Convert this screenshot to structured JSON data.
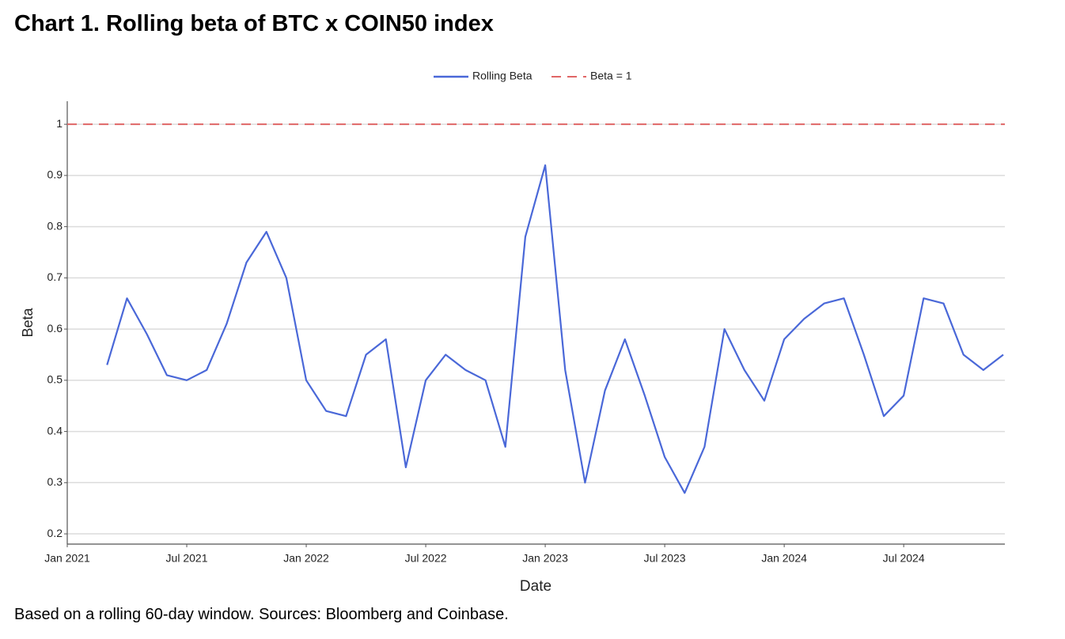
{
  "chart_data": {
    "type": "line",
    "title": "Chart 1. Rolling beta of BTC x COIN50 index",
    "footnote": "Based on a rolling 60-day window. Sources: Bloomberg and Coinbase.",
    "x_label": "Date",
    "y_label": "Beta",
    "x": [
      "2021-03",
      "2021-04",
      "2021-05",
      "2021-06",
      "2021-07",
      "2021-08",
      "2021-09",
      "2021-10",
      "2021-11",
      "2021-12",
      "2022-01",
      "2022-02",
      "2022-03",
      "2022-04",
      "2022-05",
      "2022-06",
      "2022-07",
      "2022-08",
      "2022-09",
      "2022-10",
      "2022-11",
      "2022-12",
      "2023-01",
      "2023-02",
      "2023-03",
      "2023-04",
      "2023-05",
      "2023-06",
      "2023-07",
      "2023-08",
      "2023-09",
      "2023-10",
      "2023-11",
      "2023-12",
      "2024-01",
      "2024-02",
      "2024-03",
      "2024-04",
      "2024-05",
      "2024-06",
      "2024-07",
      "2024-08",
      "2024-09",
      "2024-10",
      "2024-11",
      "2024-12"
    ],
    "series": [
      {
        "name": "Rolling Beta",
        "color": "#4a68d8",
        "values": [
          0.53,
          0.66,
          0.59,
          0.51,
          0.5,
          0.52,
          0.61,
          0.73,
          0.79,
          0.7,
          0.5,
          0.44,
          0.43,
          0.55,
          0.58,
          0.33,
          0.5,
          0.55,
          0.52,
          0.5,
          0.37,
          0.78,
          0.92,
          0.52,
          0.3,
          0.48,
          0.58,
          0.47,
          0.35,
          0.28,
          0.37,
          0.6,
          0.52,
          0.46,
          0.58,
          0.62,
          0.65,
          0.66,
          0.55,
          0.43,
          0.47,
          0.66,
          0.65,
          0.55,
          0.52,
          0.55
        ]
      }
    ],
    "reference_line": {
      "name": "Beta = 1",
      "value": 1,
      "color": "#e06666"
    },
    "xlim": [
      "2021-01",
      "2024-12"
    ],
    "xticks": [
      {
        "value": "2021-01",
        "label": "Jan 2021"
      },
      {
        "value": "2021-07",
        "label": "Jul 2021"
      },
      {
        "value": "2022-01",
        "label": "Jan 2022"
      },
      {
        "value": "2022-07",
        "label": "Jul 2022"
      },
      {
        "value": "2023-01",
        "label": "Jan 2023"
      },
      {
        "value": "2023-07",
        "label": "Jul 2023"
      },
      {
        "value": "2024-01",
        "label": "Jan 2024"
      },
      {
        "value": "2024-07",
        "label": "Jul 2024"
      }
    ],
    "ylim": [
      0.18,
      1.045
    ],
    "yticks": [
      0.2,
      0.3,
      0.4,
      0.5,
      0.6,
      0.7,
      0.8,
      0.9,
      1
    ],
    "grid": true,
    "legend": "top"
  }
}
